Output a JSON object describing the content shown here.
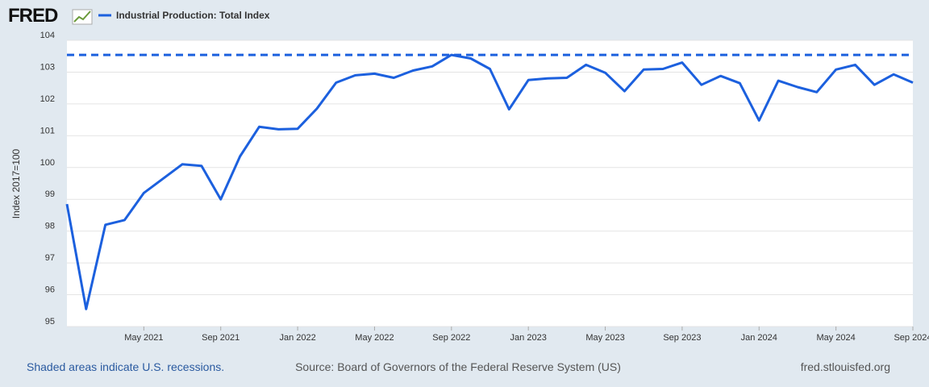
{
  "logo": "FRED",
  "chart_data": {
    "type": "line",
    "series": [
      {
        "name": "Industrial Production: Total Index",
        "color": "#1c60de",
        "values": [
          98.85,
          95.55,
          98.2,
          98.35,
          99.2,
          99.65,
          100.1,
          100.05,
          99.0,
          100.35,
          101.28,
          101.2,
          101.22,
          101.85,
          102.67,
          102.9,
          102.95,
          102.82,
          103.05,
          103.18,
          103.54,
          103.43,
          103.1,
          101.83,
          102.75,
          102.8,
          102.82,
          103.23,
          102.98,
          102.4,
          103.08,
          103.1,
          103.3,
          102.6,
          102.88,
          102.65,
          101.48,
          102.73,
          102.53,
          102.37,
          103.08,
          103.23,
          102.6,
          102.93,
          102.67
        ]
      }
    ],
    "x": [
      "2021-01",
      "2021-02",
      "2021-03",
      "2021-04",
      "2021-05",
      "2021-06",
      "2021-07",
      "2021-08",
      "2021-09",
      "2021-10",
      "2021-11",
      "2021-12",
      "2022-01",
      "2022-02",
      "2022-03",
      "2022-04",
      "2022-05",
      "2022-06",
      "2022-07",
      "2022-08",
      "2022-09",
      "2022-10",
      "2022-11",
      "2022-12",
      "2023-01",
      "2023-02",
      "2023-03",
      "2023-04",
      "2023-05",
      "2023-06",
      "2023-07",
      "2023-08",
      "2023-09",
      "2023-10",
      "2023-11",
      "2023-12",
      "2024-01",
      "2024-02",
      "2024-03",
      "2024-04",
      "2024-05",
      "2024-06",
      "2024-07",
      "2024-08",
      "2024-09"
    ],
    "xlim": [
      "2021-01",
      "2024-09"
    ],
    "xticks": [
      {
        "value": "2021-05",
        "label": "May 2021"
      },
      {
        "value": "2021-09",
        "label": "Sep 2021"
      },
      {
        "value": "2022-01",
        "label": "Jan 2022"
      },
      {
        "value": "2022-05",
        "label": "May 2022"
      },
      {
        "value": "2022-09",
        "label": "Sep 2022"
      },
      {
        "value": "2023-01",
        "label": "Jan 2023"
      },
      {
        "value": "2023-05",
        "label": "May 2023"
      },
      {
        "value": "2023-09",
        "label": "Sep 2023"
      },
      {
        "value": "2024-01",
        "label": "Jan 2024"
      },
      {
        "value": "2024-05",
        "label": "May 2024"
      },
      {
        "value": "2024-09",
        "label": "Sep 2024"
      }
    ],
    "ylim": [
      95,
      104
    ],
    "yticks": [
      95,
      96,
      97,
      98,
      99,
      100,
      101,
      102,
      103,
      104
    ],
    "y_label": "Index 2017=100",
    "reference_line": 103.54,
    "grid": true,
    "footer_left": "Shaded areas indicate U.S. recessions.",
    "footer_center": "Source: Board of Governors of the Federal Reserve System (US)",
    "footer_right": "fred.stlouisfed.org"
  }
}
